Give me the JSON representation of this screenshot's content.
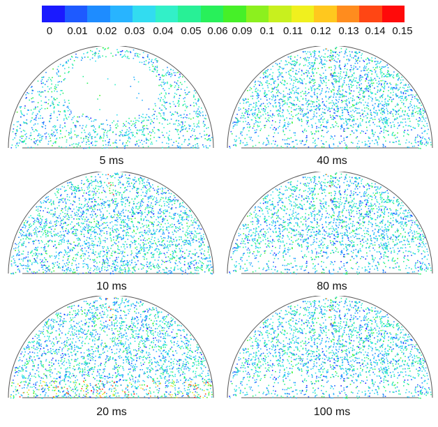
{
  "colorbar": {
    "colors": [
      "#1a1aff",
      "#1e5aff",
      "#1e8cff",
      "#28b4ff",
      "#32dcf0",
      "#32f0c8",
      "#28f096",
      "#28f05a",
      "#46f028",
      "#8cf01e",
      "#c8f01e",
      "#f0f01e",
      "#ffc81e",
      "#ff8c1e",
      "#ff4614",
      "#ff0a0a"
    ],
    "tick_labels": [
      "0",
      "0.01",
      "0.02",
      "0.03",
      "0.04",
      "0.05",
      "0.06",
      "0.09",
      "0.1",
      "0.11",
      "0.12",
      "0.13",
      "0.14",
      "0.15"
    ]
  },
  "panels": [
    {
      "caption": "5 ms"
    },
    {
      "caption": "40 ms"
    },
    {
      "caption": "10 ms"
    },
    {
      "caption": "80 ms"
    },
    {
      "caption": "20 ms"
    },
    {
      "caption": "100 ms"
    }
  ]
}
